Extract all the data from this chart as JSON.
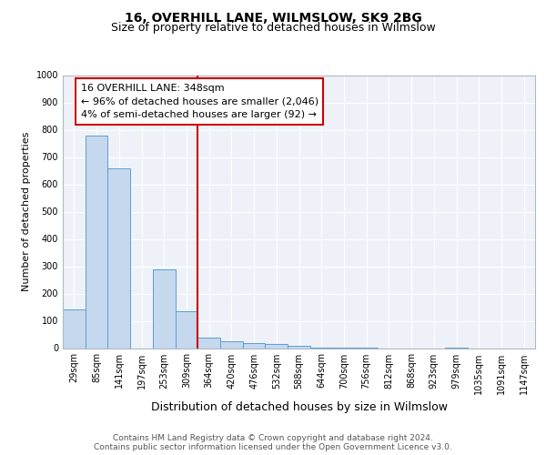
{
  "title1": "16, OVERHILL LANE, WILMSLOW, SK9 2BG",
  "title2": "Size of property relative to detached houses in Wilmslow",
  "xlabel": "Distribution of detached houses by size in Wilmslow",
  "ylabel": "Number of detached properties",
  "bin_labels": [
    "29sqm",
    "85sqm",
    "141sqm",
    "197sqm",
    "253sqm",
    "309sqm",
    "364sqm",
    "420sqm",
    "476sqm",
    "532sqm",
    "588sqm",
    "644sqm",
    "700sqm",
    "756sqm",
    "812sqm",
    "868sqm",
    "923sqm",
    "979sqm",
    "1035sqm",
    "1091sqm",
    "1147sqm"
  ],
  "bar_heights": [
    143,
    780,
    660,
    0,
    290,
    135,
    38,
    25,
    20,
    15,
    8,
    3,
    3,
    1,
    0,
    0,
    0,
    1,
    0,
    0,
    0
  ],
  "bar_color": "#c5d8ed",
  "bar_edge_color": "#5a9fd4",
  "property_line_x": 6.0,
  "annotation_text": "16 OVERHILL LANE: 348sqm\n← 96% of detached houses are smaller (2,046)\n4% of semi-detached houses are larger (92) →",
  "annotation_box_color": "#ffffff",
  "annotation_box_edge_color": "#cc0000",
  "vline_color": "#cc0000",
  "ylim": [
    0,
    1000
  ],
  "yticks": [
    0,
    100,
    200,
    300,
    400,
    500,
    600,
    700,
    800,
    900,
    1000
  ],
  "footer_text": "Contains HM Land Registry data © Crown copyright and database right 2024.\nContains public sector information licensed under the Open Government Licence v3.0.",
  "bg_color": "#eef2f8",
  "grid_color": "#ffffff",
  "title1_fontsize": 10,
  "title2_fontsize": 9,
  "xlabel_fontsize": 9,
  "ylabel_fontsize": 8,
  "tick_fontsize": 7,
  "annotation_fontsize": 8,
  "footer_fontsize": 6.5
}
